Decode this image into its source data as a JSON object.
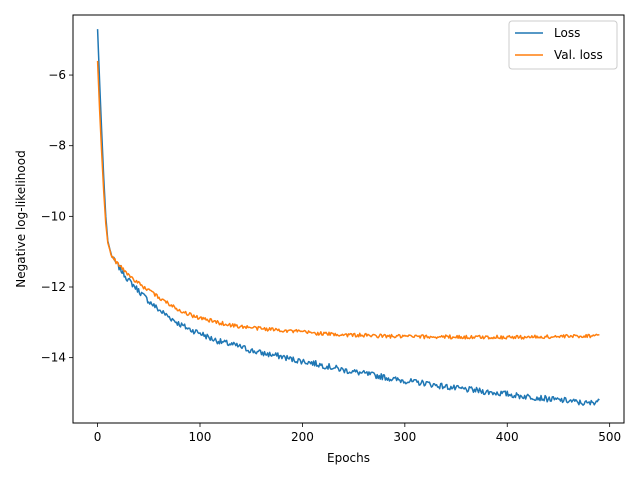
{
  "chart_data": {
    "type": "line",
    "title": "",
    "xlabel": "Epochs",
    "ylabel": "Negative log-likelihood",
    "xlim": [
      -24,
      514
    ],
    "ylim": [
      -15.85,
      -4.3
    ],
    "xticks": [
      0,
      100,
      200,
      300,
      400,
      500
    ],
    "yticks": [
      -14,
      -12,
      -10,
      -8,
      -6
    ],
    "grid": false,
    "legend_position": "top-right",
    "series": [
      {
        "name": "Loss",
        "color": "#1f77b4",
        "points": [
          [
            0,
            -4.7
          ],
          [
            2,
            -6.2
          ],
          [
            4,
            -7.6
          ],
          [
            6,
            -8.9
          ],
          [
            8,
            -10.0
          ],
          [
            10,
            -10.7
          ],
          [
            13,
            -11.05
          ],
          [
            16,
            -11.25
          ],
          [
            20,
            -11.4
          ],
          [
            25,
            -11.6
          ],
          [
            30,
            -11.8
          ],
          [
            40,
            -12.1
          ],
          [
            50,
            -12.4
          ],
          [
            60,
            -12.65
          ],
          [
            70,
            -12.85
          ],
          [
            80,
            -13.05
          ],
          [
            90,
            -13.2
          ],
          [
            100,
            -13.3
          ],
          [
            110,
            -13.45
          ],
          [
            120,
            -13.55
          ],
          [
            130,
            -13.62
          ],
          [
            140,
            -13.7
          ],
          [
            150,
            -13.8
          ],
          [
            160,
            -13.87
          ],
          [
            170,
            -13.92
          ],
          [
            180,
            -13.97
          ],
          [
            190,
            -14.05
          ],
          [
            200,
            -14.1
          ],
          [
            210,
            -14.15
          ],
          [
            220,
            -14.22
          ],
          [
            230,
            -14.28
          ],
          [
            240,
            -14.35
          ],
          [
            250,
            -14.4
          ],
          [
            260,
            -14.45
          ],
          [
            270,
            -14.5
          ],
          [
            280,
            -14.55
          ],
          [
            290,
            -14.62
          ],
          [
            300,
            -14.65
          ],
          [
            310,
            -14.7
          ],
          [
            320,
            -14.72
          ],
          [
            330,
            -14.78
          ],
          [
            340,
            -14.82
          ],
          [
            350,
            -14.87
          ],
          [
            360,
            -14.9
          ],
          [
            370,
            -14.93
          ],
          [
            380,
            -14.97
          ],
          [
            390,
            -15.0
          ],
          [
            400,
            -15.03
          ],
          [
            410,
            -15.08
          ],
          [
            420,
            -15.1
          ],
          [
            430,
            -15.13
          ],
          [
            440,
            -15.17
          ],
          [
            450,
            -15.2
          ],
          [
            460,
            -15.22
          ],
          [
            470,
            -15.27
          ],
          [
            480,
            -15.3
          ],
          [
            490,
            -15.2
          ]
        ]
      },
      {
        "name": "Val. loss",
        "color": "#ff7f0e",
        "points": [
          [
            0,
            -5.6
          ],
          [
            2,
            -7.0
          ],
          [
            4,
            -8.2
          ],
          [
            6,
            -9.3
          ],
          [
            8,
            -10.2
          ],
          [
            10,
            -10.75
          ],
          [
            13,
            -11.05
          ],
          [
            16,
            -11.22
          ],
          [
            20,
            -11.35
          ],
          [
            25,
            -11.5
          ],
          [
            30,
            -11.65
          ],
          [
            40,
            -11.9
          ],
          [
            50,
            -12.1
          ],
          [
            60,
            -12.3
          ],
          [
            70,
            -12.48
          ],
          [
            80,
            -12.65
          ],
          [
            90,
            -12.78
          ],
          [
            100,
            -12.88
          ],
          [
            110,
            -12.95
          ],
          [
            120,
            -13.02
          ],
          [
            130,
            -13.08
          ],
          [
            140,
            -13.12
          ],
          [
            150,
            -13.15
          ],
          [
            160,
            -13.18
          ],
          [
            170,
            -13.2
          ],
          [
            180,
            -13.22
          ],
          [
            190,
            -13.25
          ],
          [
            200,
            -13.27
          ],
          [
            210,
            -13.3
          ],
          [
            220,
            -13.32
          ],
          [
            230,
            -13.34
          ],
          [
            240,
            -13.35
          ],
          [
            250,
            -13.36
          ],
          [
            260,
            -13.37
          ],
          [
            270,
            -13.38
          ],
          [
            280,
            -13.39
          ],
          [
            290,
            -13.4
          ],
          [
            300,
            -13.4
          ],
          [
            320,
            -13.41
          ],
          [
            340,
            -13.41
          ],
          [
            360,
            -13.42
          ],
          [
            380,
            -13.42
          ],
          [
            400,
            -13.42
          ],
          [
            420,
            -13.42
          ],
          [
            440,
            -13.41
          ],
          [
            460,
            -13.4
          ],
          [
            480,
            -13.38
          ],
          [
            490,
            -13.35
          ]
        ]
      }
    ]
  }
}
